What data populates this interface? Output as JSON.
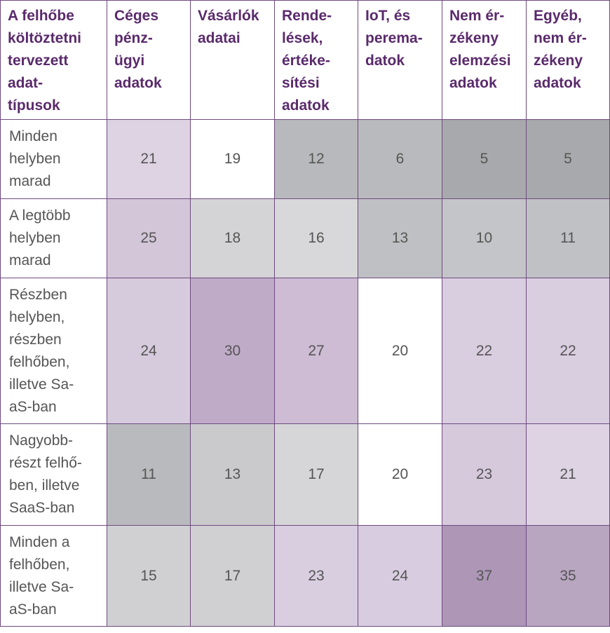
{
  "table": {
    "header": [
      "A felhőbe\nköltöztetni\ntervezett\nadat-\ntípusok",
      "Céges\npénz-\nügyi\nadatok",
      "Vásárlók\nadatai",
      "Rende-\nlések,\nértéke-\nsítési\nadatok",
      "IoT, és\nperema-\ndatok",
      "Nem ér-\nzékeny\nelemzési\nadatok",
      "Egyéb,\nnem ér-\nzékeny\nadatok"
    ],
    "rows": [
      {
        "label": "Minden\nhelyben\nmarad",
        "cells": [
          21,
          19,
          12,
          6,
          5,
          5
        ],
        "colors": [
          "#ddd3e3",
          "#ffffff",
          "#b8b9bc",
          "#b9babd",
          "#a8a9ac",
          "#a8a9ac"
        ]
      },
      {
        "label": "A legtöbb\nhelyben\nmarad",
        "cells": [
          25,
          18,
          16,
          13,
          10,
          11
        ],
        "colors": [
          "#d3c6d9",
          "#d4d4d6",
          "#d8d8da",
          "#bfc0c3",
          "#c4c5c8",
          "#c0c1c4"
        ]
      },
      {
        "label": "Részben\nhelyben,\nrészben\nfelhőben,\nilletve Sa-\naS-ban",
        "cells": [
          24,
          30,
          27,
          20,
          22,
          22
        ],
        "colors": [
          "#d6cbdc",
          "#bfabc8",
          "#cdbcd4",
          "#ffffff",
          "#d9cde0",
          "#d9cde0"
        ]
      },
      {
        "label": "Nagyobb-\nrészt felhő-\nben, illetve\nSaaS-ban",
        "cells": [
          11,
          13,
          17,
          20,
          23,
          21
        ],
        "colors": [
          "#b9babd",
          "#cacacd",
          "#d6d6d8",
          "#ffffff",
          "#d6c9dc",
          "#ddd3e3"
        ]
      },
      {
        "label": "Minden a\nfelhőben,\nilletve Sa-\naS-ban",
        "cells": [
          15,
          17,
          23,
          24,
          37,
          35
        ],
        "colors": [
          "#d0d0d2",
          "#d0d0d2",
          "#d9cee0",
          "#d8cce0",
          "#ad96b6",
          "#b8a5c0"
        ]
      }
    ]
  }
}
